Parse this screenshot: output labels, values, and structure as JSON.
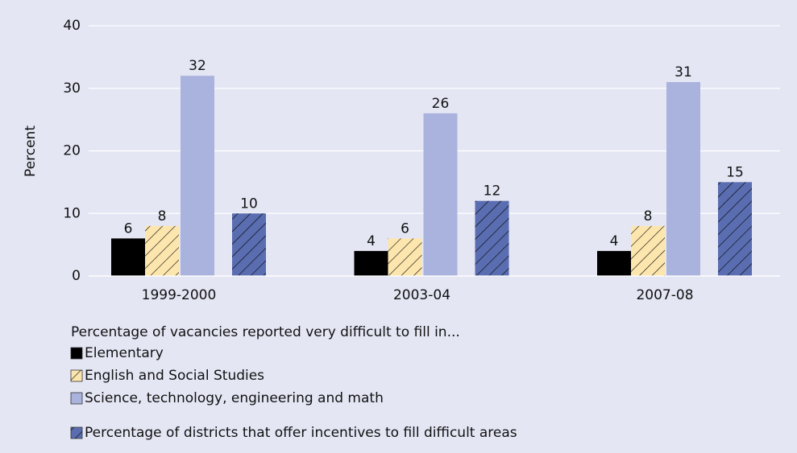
{
  "chart_data": {
    "type": "bar",
    "y_label": "Percent",
    "legend_title": "Percentage of vacancies reported very difficult to fill in...",
    "categories": [
      "1999-2000",
      "2003-04",
      "2007-08"
    ],
    "series": [
      {
        "name": "Elementary",
        "color": "#000000",
        "hatched": false,
        "values": [
          6,
          4,
          4
        ]
      },
      {
        "name": "English and Social Studies",
        "color": "#fde6ae",
        "hatched": true,
        "values": [
          8,
          6,
          8
        ]
      },
      {
        "name": "Science, technology, engineering and math",
        "color": "#aab3dd",
        "hatched": false,
        "values": [
          32,
          26,
          31
        ]
      },
      {
        "name": "Percentage of districts that offer incentives to fill difficult areas",
        "color": "#5a6db0",
        "hatched": true,
        "values": [
          10,
          12,
          15
        ]
      }
    ],
    "ylim": [
      0,
      40
    ],
    "yticks": [
      0,
      10,
      20,
      30,
      40
    ],
    "grid": true
  }
}
